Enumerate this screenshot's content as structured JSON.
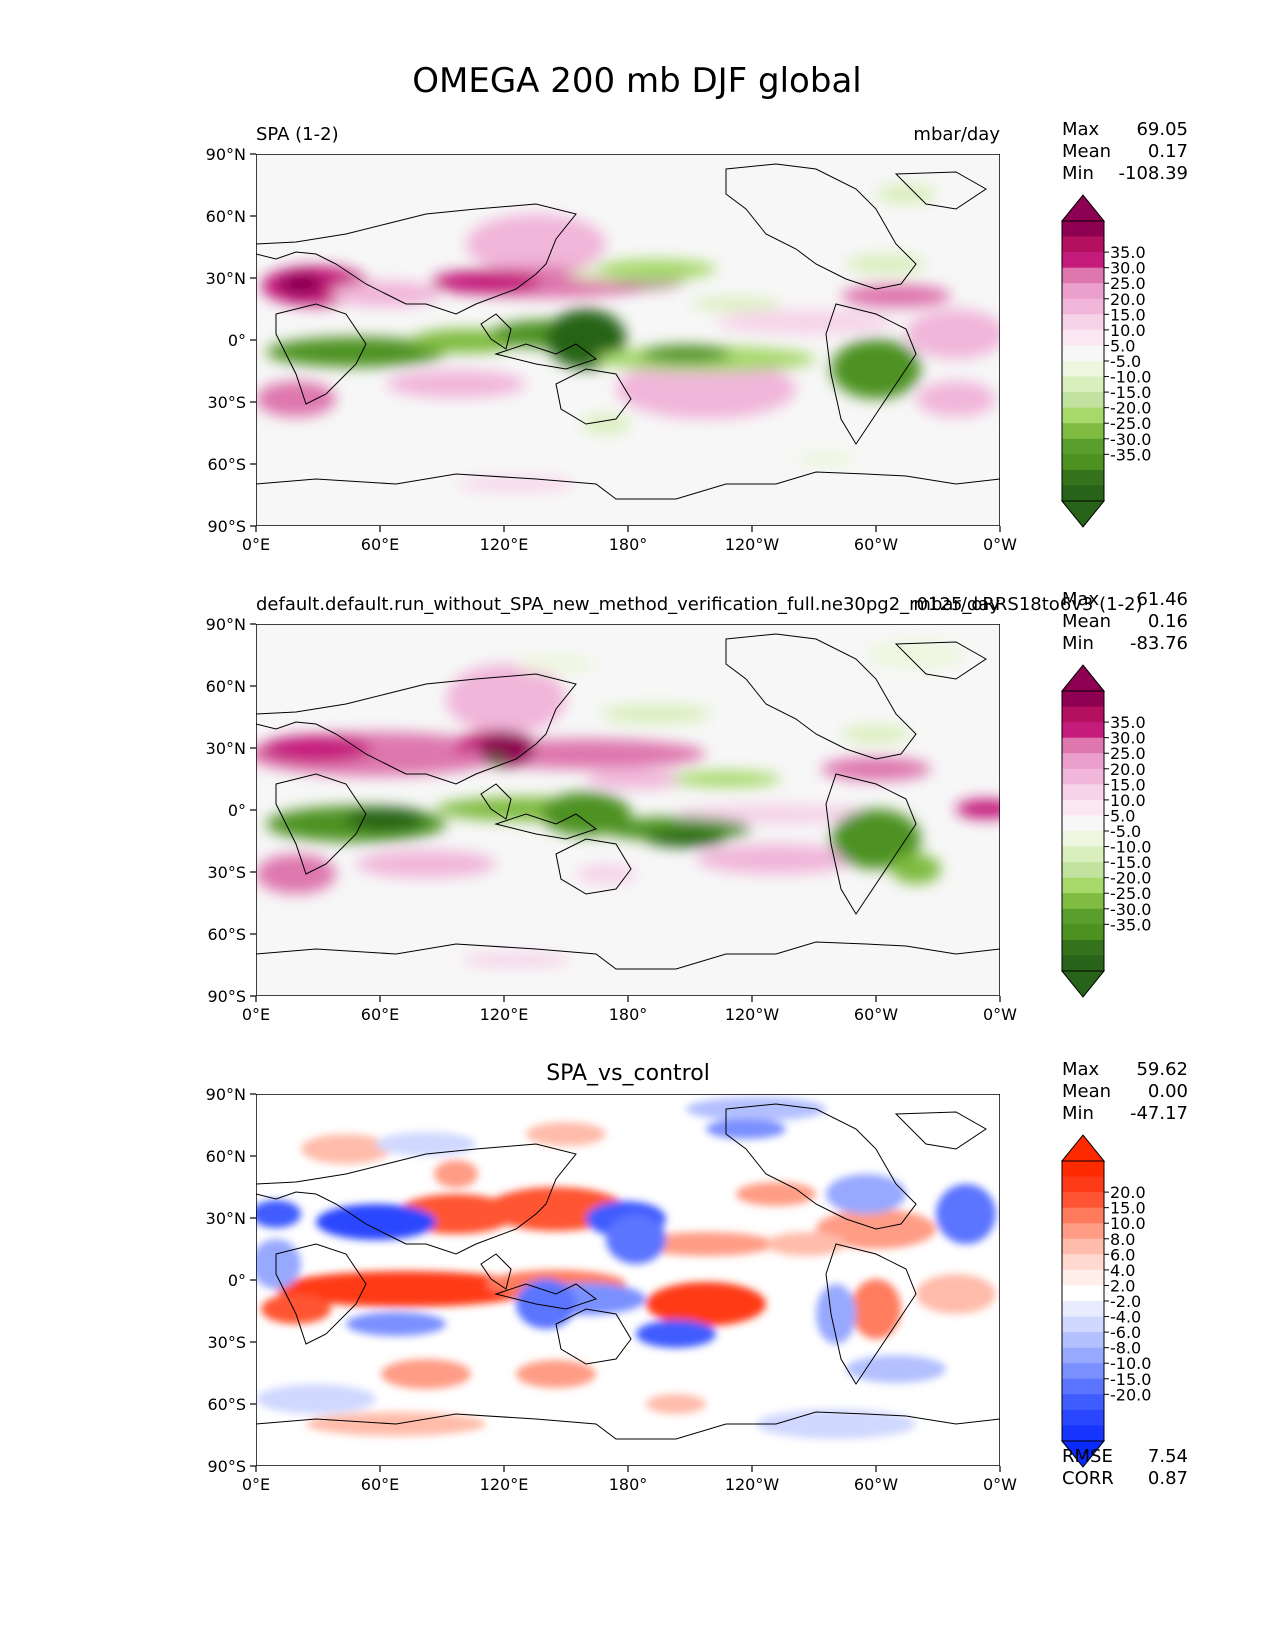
{
  "figure_title": "OMEGA 200 mb DJF global",
  "x_ticks": [
    "0°E",
    "60°E",
    "120°E",
    "180°",
    "120°W",
    "60°W",
    "0°W"
  ],
  "y_ticks": [
    "90°N",
    "60°N",
    "30°N",
    "0°",
    "30°S",
    "60°S",
    "90°S"
  ],
  "stat_labels": {
    "max": "Max",
    "mean": "Mean",
    "min": "Min",
    "rmse": "RMSE",
    "corr": "CORR"
  },
  "panels": [
    {
      "left_title": "SPA (1-2)",
      "center_title": "",
      "right_title": "mbar/day",
      "stats": {
        "max": "69.05",
        "mean": "0.17",
        "min": "-108.39"
      },
      "colorbar_labels": [
        "35.0",
        "30.0",
        "25.0",
        "20.0",
        "15.0",
        "10.0",
        "5.0",
        "-5.0",
        "-10.0",
        "-15.0",
        "-20.0",
        "-25.0",
        "-30.0",
        "-35.0"
      ],
      "colorbar_colors": [
        "#8e0152",
        "#b3105f",
        "#c51b7d",
        "#de77ae",
        "#ea9fcc",
        "#f1b6da",
        "#f6d3e8",
        "#fbe7f2",
        "#f7f7f7",
        "#eef6df",
        "#d9efbd",
        "#c2e3a0",
        "#a6d96a",
        "#7fbc41",
        "#5a9f2e",
        "#4d9221",
        "#34731b",
        "#276419"
      ],
      "colorbar_ends": [
        "#8e0152",
        "#276419"
      ]
    },
    {
      "left_title": "default.default.run_without_SPA_new_method_verification_full.ne30pg2_r0125_oRRS18to6v3 (1-2)",
      "center_title": "",
      "right_title": "mbar/day",
      "stats": {
        "max": "61.46",
        "mean": "0.16",
        "min": "-83.76"
      },
      "colorbar_labels": [
        "35.0",
        "30.0",
        "25.0",
        "20.0",
        "15.0",
        "10.0",
        "5.0",
        "-5.0",
        "-10.0",
        "-15.0",
        "-20.0",
        "-25.0",
        "-30.0",
        "-35.0"
      ],
      "colorbar_colors": [
        "#8e0152",
        "#b3105f",
        "#c51b7d",
        "#de77ae",
        "#ea9fcc",
        "#f1b6da",
        "#f6d3e8",
        "#fbe7f2",
        "#f7f7f7",
        "#eef6df",
        "#d9efbd",
        "#c2e3a0",
        "#a6d96a",
        "#7fbc41",
        "#5a9f2e",
        "#4d9221",
        "#34731b",
        "#276419"
      ],
      "colorbar_ends": [
        "#8e0152",
        "#276419"
      ]
    },
    {
      "left_title": "",
      "center_title": "SPA_vs_control",
      "right_title": "",
      "stats": {
        "max": "59.62",
        "mean": "0.00",
        "min": "-47.17",
        "rmse": "7.54",
        "corr": "0.87"
      },
      "colorbar_labels": [
        "20.0",
        "15.0",
        "10.0",
        "8.0",
        "6.0",
        "4.0",
        "2.0",
        "-2.0",
        "-4.0",
        "-6.0",
        "-8.0",
        "-10.0",
        "-15.0",
        "-20.0"
      ],
      "colorbar_colors": [
        "#ff2a00",
        "#ff3a18",
        "#ff5533",
        "#ff7b5e",
        "#ff9c85",
        "#ffbcaa",
        "#ffd9cf",
        "#ffeeea",
        "#ffffff",
        "#e9ecff",
        "#d0d8ff",
        "#b3c0ff",
        "#97a8ff",
        "#7a90ff",
        "#5c75ff",
        "#3f5cff",
        "#2a47ff",
        "#1635ff"
      ],
      "colorbar_ends": [
        "#ff2a00",
        "#0a2aff"
      ]
    }
  ]
}
